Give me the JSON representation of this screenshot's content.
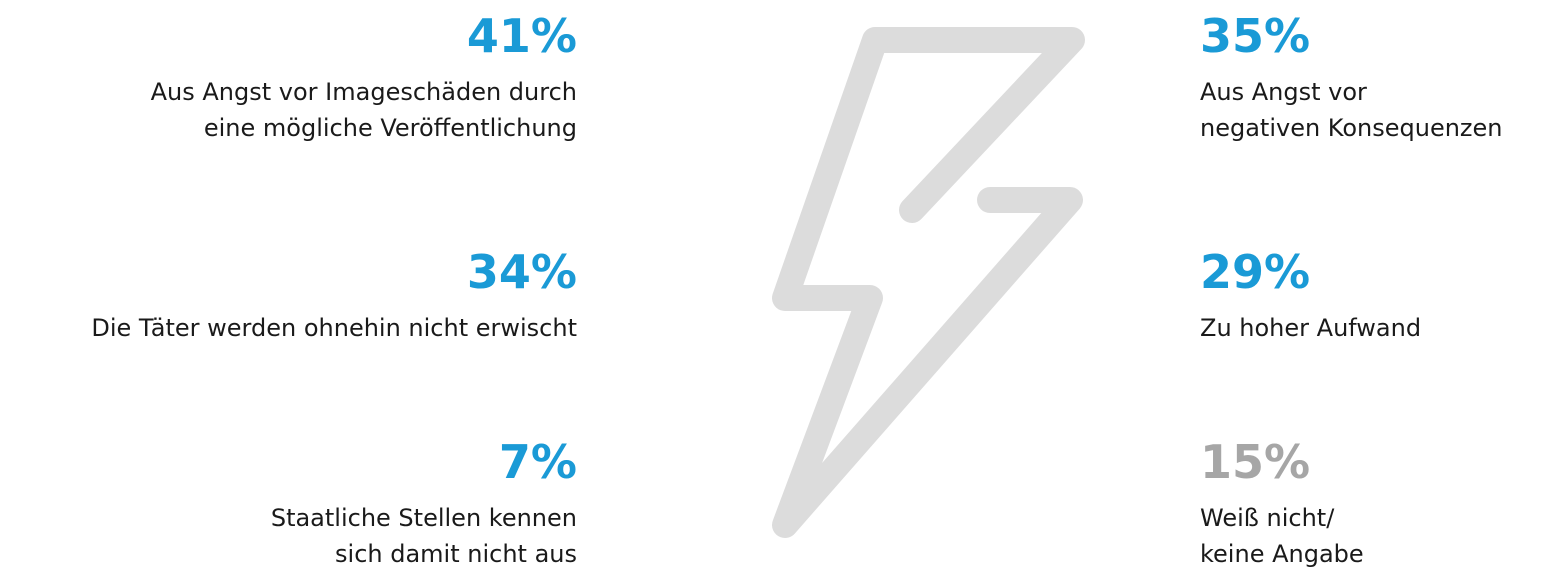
{
  "items": [
    {
      "value": "41%",
      "color": "#1a9ad6",
      "lines": [
        "Aus Angst vor Imageschäden durch",
        "eine mögliche Veröffentlichung"
      ]
    },
    {
      "value": "34%",
      "color": "#1a9ad6",
      "lines": [
        "Die Täter werden ohnehin nicht erwischt"
      ]
    },
    {
      "value": "7%",
      "color": "#1a9ad6",
      "lines": [
        "Staatliche Stellen kennen",
        "sich damit nicht aus"
      ]
    },
    {
      "value": "35%",
      "color": "#1a9ad6",
      "lines": [
        "Aus Angst vor",
        "negativen Konsequenzen"
      ]
    },
    {
      "value": "29%",
      "color": "#1a9ad6",
      "lines": [
        "Zu hoher Aufwand"
      ]
    },
    {
      "value": "15%",
      "color": "#a6a6a6",
      "lines": [
        "Weiß nicht/",
        "keine Angabe"
      ]
    }
  ]
}
